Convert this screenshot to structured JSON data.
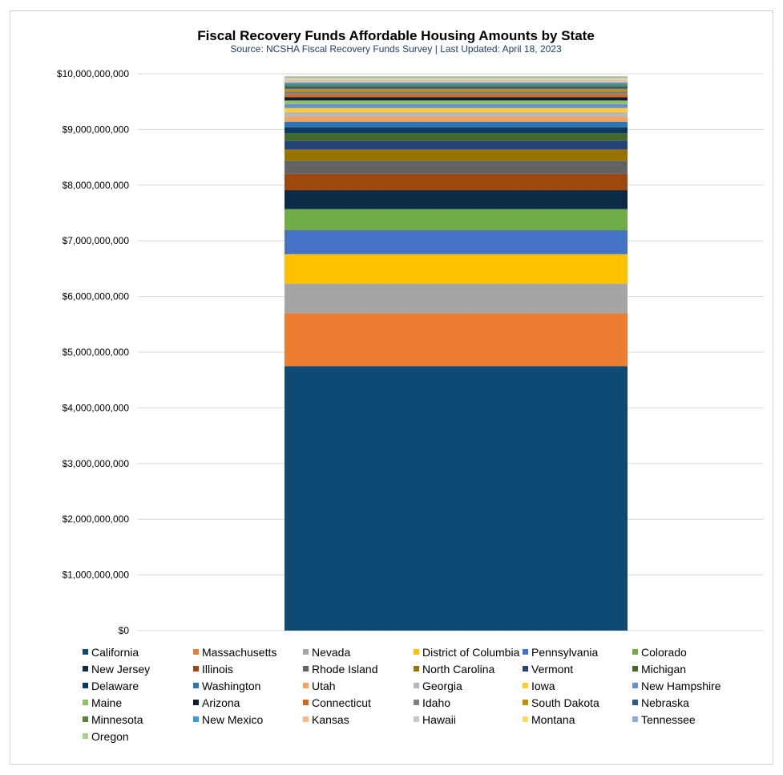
{
  "chart_data": {
    "type": "bar",
    "stacked": true,
    "title": "Fiscal Recovery Funds Affordable Housing Amounts by State",
    "subtitle": "Source: NCSHA Fiscal Recovery Funds Survey | Last Updated: April 18, 2023",
    "xlabel": "",
    "ylabel": "",
    "ylim": [
      0,
      10000000000
    ],
    "yticks": [
      0,
      1000000000,
      2000000000,
      3000000000,
      4000000000,
      5000000000,
      6000000000,
      7000000000,
      8000000000,
      9000000000,
      10000000000
    ],
    "ytick_labels": [
      "$0",
      "$1,000,000,000",
      "$2,000,000,000",
      "$3,000,000,000",
      "$4,000,000,000",
      "$5,000,000,000",
      "$6,000,000,000",
      "$7,000,000,000",
      "$8,000,000,000",
      "$9,000,000,000",
      "$10,000,000,000"
    ],
    "grid": true,
    "legend_position": "bottom",
    "series": [
      {
        "name": "California",
        "value": 4750000000,
        "color": "#0e4a73"
      },
      {
        "name": "Massachusetts",
        "value": 950000000,
        "color": "#ed7d31"
      },
      {
        "name": "Nevada",
        "value": 530000000,
        "color": "#a5a5a5"
      },
      {
        "name": "District of Columbia",
        "value": 530000000,
        "color": "#ffc000"
      },
      {
        "name": "Pennsylvania",
        "value": 430000000,
        "color": "#4472c4"
      },
      {
        "name": "Colorado",
        "value": 380000000,
        "color": "#70ad47"
      },
      {
        "name": "New Jersey",
        "value": 340000000,
        "color": "#0b2a45"
      },
      {
        "name": "Illinois",
        "value": 290000000,
        "color": "#9e480e"
      },
      {
        "name": "Rhode Island",
        "value": 240000000,
        "color": "#636363"
      },
      {
        "name": "North Carolina",
        "value": 200000000,
        "color": "#997300"
      },
      {
        "name": "Vermont",
        "value": 160000000,
        "color": "#264478"
      },
      {
        "name": "Michigan",
        "value": 130000000,
        "color": "#43682b"
      },
      {
        "name": "Delaware",
        "value": 110000000,
        "color": "#0d3a5c"
      },
      {
        "name": "Washington",
        "value": 100000000,
        "color": "#2e75b6"
      },
      {
        "name": "Utah",
        "value": 90000000,
        "color": "#f4a261"
      },
      {
        "name": "Georgia",
        "value": 80000000,
        "color": "#b7b7b7"
      },
      {
        "name": "Iowa",
        "value": 75000000,
        "color": "#ffcd33"
      },
      {
        "name": "New Hampshire",
        "value": 70000000,
        "color": "#698ed0"
      },
      {
        "name": "Maine",
        "value": 65000000,
        "color": "#8cc168"
      },
      {
        "name": "Arizona",
        "value": 60000000,
        "color": "#0a1f33"
      },
      {
        "name": "Connecticut",
        "value": 55000000,
        "color": "#d2691e"
      },
      {
        "name": "Idaho",
        "value": 50000000,
        "color": "#7f7f7f"
      },
      {
        "name": "South Dakota",
        "value": 45000000,
        "color": "#bf9000"
      },
      {
        "name": "Nebraska",
        "value": 42000000,
        "color": "#2f5597"
      },
      {
        "name": "Minnesota",
        "value": 38000000,
        "color": "#548235"
      },
      {
        "name": "New Mexico",
        "value": 34000000,
        "color": "#3a9ad9"
      },
      {
        "name": "Kansas",
        "value": 30000000,
        "color": "#f8b88b"
      },
      {
        "name": "Hawaii",
        "value": 26000000,
        "color": "#c9c9c9"
      },
      {
        "name": "Montana",
        "value": 22000000,
        "color": "#ffd966"
      },
      {
        "name": "Tennessee",
        "value": 18000000,
        "color": "#8faadc"
      },
      {
        "name": "Oregon",
        "value": 16000000,
        "color": "#a9d18e"
      }
    ]
  }
}
